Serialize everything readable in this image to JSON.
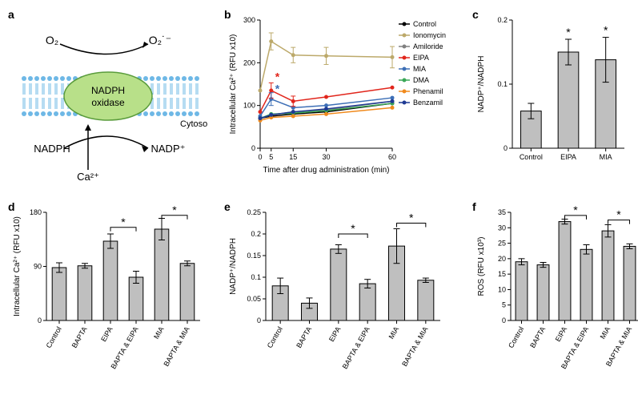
{
  "panel_a": {
    "label": "a",
    "title": "NADPH\noxidase",
    "labels": {
      "o2": "O₂",
      "o2_rad": "O₂˙⁻",
      "nadph": "NADPH",
      "nadp": "NADP⁺",
      "ca2": "Ca²⁺",
      "cytosol": "Cytosol"
    },
    "colors": {
      "membrane_outer": "#6eb8e6",
      "membrane_inner": "#e8f4fb",
      "oxidase_fill": "#b8e089",
      "oxidase_stroke": "#5a9c3c"
    }
  },
  "panel_b": {
    "label": "b",
    "xlabel": "Time after drug administration (min)",
    "ylabel": "Intracellular Ca²⁺ (RFU x10)",
    "xlim": [
      0,
      60
    ],
    "ylim": [
      0,
      300
    ],
    "xticks": [
      0,
      5,
      15,
      30,
      60
    ],
    "yticks": [
      0,
      100,
      200,
      300
    ],
    "series": [
      {
        "name": "Control",
        "color": "#000000",
        "values": [
          70,
          75,
          80,
          85,
          105
        ]
      },
      {
        "name": "Ionomycin",
        "color": "#bca96a",
        "values": [
          135,
          250,
          218,
          216,
          213
        ]
      },
      {
        "name": "Amiloride",
        "color": "#808080",
        "values": [
          70,
          78,
          85,
          90,
          110
        ]
      },
      {
        "name": "EIPA",
        "color": "#e1261c",
        "values": [
          85,
          135,
          110,
          120,
          142
        ]
      },
      {
        "name": "MIA",
        "color": "#3d6fb6",
        "values": [
          75,
          115,
          95,
          100,
          118
        ]
      },
      {
        "name": "DMA",
        "color": "#3aa757",
        "values": [
          70,
          80,
          82,
          88,
          105
        ]
      },
      {
        "name": "Phenamil",
        "color": "#f08a1d",
        "values": [
          65,
          72,
          75,
          80,
          95
        ]
      },
      {
        "name": "Benzamil",
        "color": "#1f3a93",
        "values": [
          70,
          78,
          85,
          92,
          110
        ]
      }
    ],
    "errors": [
      {
        "t": 5,
        "series": "Ionomycin",
        "e": 20
      },
      {
        "t": 15,
        "series": "Ionomycin",
        "e": 18
      },
      {
        "t": 30,
        "series": "Ionomycin",
        "e": 20
      },
      {
        "t": 60,
        "series": "Ionomycin",
        "e": 25
      },
      {
        "t": 5,
        "series": "EIPA",
        "e": 18
      },
      {
        "t": 15,
        "series": "EIPA",
        "e": 12
      },
      {
        "t": 5,
        "series": "MIA",
        "e": 15
      }
    ],
    "stars": [
      {
        "t": 5,
        "y": 158,
        "color": "#e1261c"
      },
      {
        "t": 5,
        "y": 130,
        "color": "#3d6fb6"
      }
    ]
  },
  "panel_c": {
    "label": "c",
    "ylabel": "NADP⁺/NADPH",
    "ylim": [
      0,
      0.2
    ],
    "yticks": [
      0,
      0.1,
      0.2
    ],
    "categories": [
      "Control",
      "EIPA",
      "MIA"
    ],
    "values": [
      0.058,
      0.15,
      0.138
    ],
    "errors": [
      0.012,
      0.02,
      0.035
    ],
    "stars": [
      1,
      2
    ],
    "bar_color": "#bfbfbf"
  },
  "panel_d": {
    "label": "d",
    "ylabel": "Intracellular Ca²⁺ (RFU x10)",
    "ylim": [
      0,
      180
    ],
    "yticks": [
      0,
      90,
      180
    ],
    "categories": [
      "Control",
      "BAPTA",
      "EIPA",
      "BAPTA & EIPA",
      "MIA",
      "BAPTA & MIA"
    ],
    "values": [
      88,
      91,
      132,
      72,
      152,
      95
    ],
    "errors": [
      8,
      4,
      12,
      10,
      18,
      4
    ],
    "bar_color": "#bfbfbf",
    "brackets": [
      {
        "from": 2,
        "to": 3,
        "y": 155
      },
      {
        "from": 4,
        "to": 5,
        "y": 175
      }
    ]
  },
  "panel_e": {
    "label": "e",
    "ylabel": "NADP⁺/NADPH",
    "ylim": [
      0,
      0.25
    ],
    "yticks": [
      0,
      0.05,
      0.1,
      0.15,
      0.2,
      0.25
    ],
    "categories": [
      "Control",
      "BAPTA",
      "EIPA",
      "BAPTA & EIPA",
      "MIA",
      "BAPTA & MIA"
    ],
    "values": [
      0.08,
      0.04,
      0.165,
      0.085,
      0.172,
      0.093
    ],
    "errors": [
      0.018,
      0.012,
      0.01,
      0.01,
      0.04,
      0.005
    ],
    "bar_color": "#bfbfbf",
    "brackets": [
      {
        "from": 2,
        "to": 3,
        "y": 0.2
      },
      {
        "from": 4,
        "to": 5,
        "y": 0.225
      }
    ]
  },
  "panel_f": {
    "label": "f",
    "ylabel": "ROS (RFU x10³)",
    "ylim": [
      0,
      35
    ],
    "yticks": [
      0,
      5,
      10,
      15,
      20,
      25,
      30,
      35
    ],
    "categories": [
      "Control",
      "BAPTA",
      "EIPA",
      "BAPTA & EIPA",
      "MIA",
      "BAPTA & MIA"
    ],
    "values": [
      19,
      18,
      32,
      23,
      29,
      24
    ],
    "errors": [
      1.0,
      0.8,
      0.8,
      1.5,
      2.0,
      0.8
    ],
    "bar_color": "#bfbfbf",
    "brackets": [
      {
        "from": 2,
        "to": 3,
        "y": 34
      },
      {
        "from": 4,
        "to": 5,
        "y": 32.5
      }
    ]
  }
}
